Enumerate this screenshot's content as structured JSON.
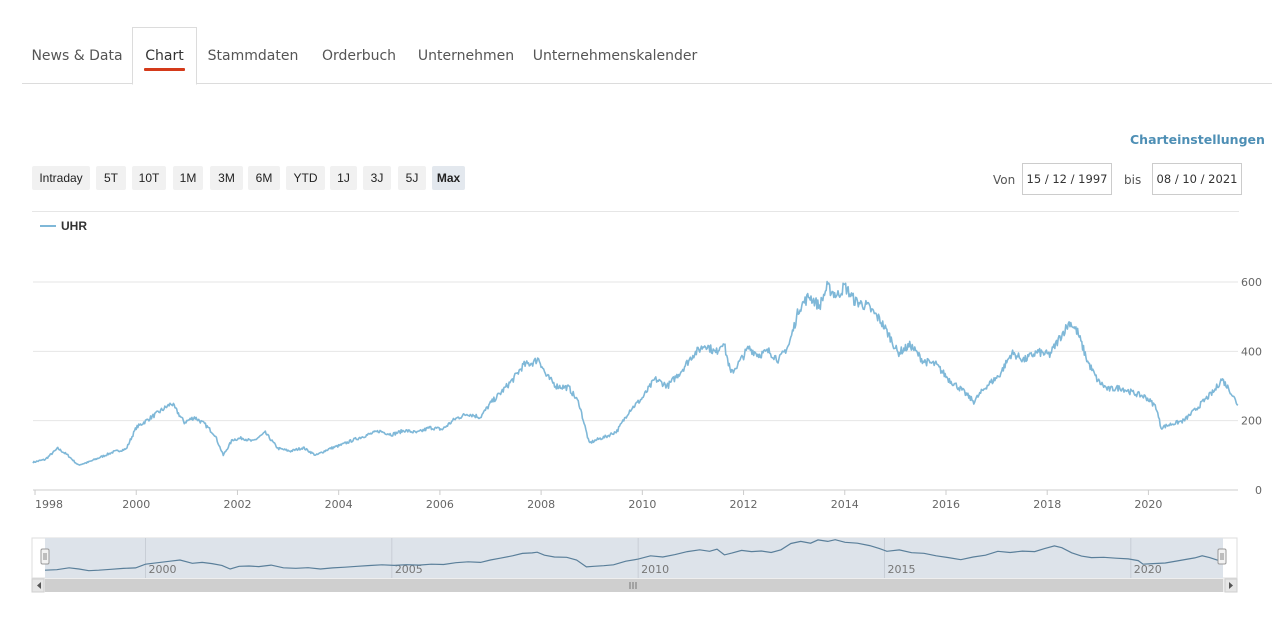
{
  "tabs": [
    {
      "label": "News & Data",
      "active": false
    },
    {
      "label": "Chart",
      "active": true
    },
    {
      "label": "Stammdaten",
      "active": false
    },
    {
      "label": "Orderbuch",
      "active": false
    },
    {
      "label": "Unternehmen",
      "active": false
    },
    {
      "label": "Unternehmenskalender",
      "active": false
    }
  ],
  "settings_label": "Charteinstellungen",
  "range_buttons": [
    {
      "label": "Intraday",
      "selected": false
    },
    {
      "label": "5T",
      "selected": false
    },
    {
      "label": "10T",
      "selected": false
    },
    {
      "label": "1M",
      "selected": false
    },
    {
      "label": "3M",
      "selected": false
    },
    {
      "label": "6M",
      "selected": false
    },
    {
      "label": "YTD",
      "selected": false
    },
    {
      "label": "1J",
      "selected": false
    },
    {
      "label": "3J",
      "selected": false
    },
    {
      "label": "5J",
      "selected": false
    },
    {
      "label": "Max",
      "selected": true
    }
  ],
  "date_range": {
    "from_label": "Von",
    "from_value": "15 / 12 / 1997",
    "to_label": "bis",
    "to_value": "08 / 10 / 2021"
  },
  "colors": {
    "accent": "#d43a1a",
    "series": "#7fb8d8",
    "link": "#4e8fb5",
    "navigator_fill": "#dde3ea"
  },
  "chart_data": {
    "type": "line",
    "series": [
      {
        "name": "UHR",
        "points": [
          [
            1997.96,
            80
          ],
          [
            1998.2,
            88
          ],
          [
            1998.45,
            120
          ],
          [
            1998.65,
            100
          ],
          [
            1998.85,
            72
          ],
          [
            1999.05,
            80
          ],
          [
            1999.3,
            95
          ],
          [
            1999.55,
            110
          ],
          [
            1999.8,
            118
          ],
          [
            2000.0,
            180
          ],
          [
            2000.25,
            205
          ],
          [
            2000.5,
            230
          ],
          [
            2000.7,
            250
          ],
          [
            2000.95,
            195
          ],
          [
            2001.15,
            210
          ],
          [
            2001.35,
            190
          ],
          [
            2001.55,
            160
          ],
          [
            2001.72,
            100
          ],
          [
            2001.9,
            145
          ],
          [
            2002.1,
            150
          ],
          [
            2002.3,
            140
          ],
          [
            2002.55,
            165
          ],
          [
            2002.8,
            120
          ],
          [
            2003.05,
            112
          ],
          [
            2003.3,
            122
          ],
          [
            2003.55,
            100
          ],
          [
            2003.8,
            118
          ],
          [
            2004.05,
            130
          ],
          [
            2004.3,
            145
          ],
          [
            2004.55,
            158
          ],
          [
            2004.8,
            170
          ],
          [
            2005.05,
            160
          ],
          [
            2005.3,
            172
          ],
          [
            2005.55,
            165
          ],
          [
            2005.8,
            180
          ],
          [
            2006.05,
            175
          ],
          [
            2006.3,
            205
          ],
          [
            2006.55,
            220
          ],
          [
            2006.8,
            210
          ],
          [
            2007.0,
            250
          ],
          [
            2007.2,
            280
          ],
          [
            2007.45,
            320
          ],
          [
            2007.65,
            360
          ],
          [
            2007.85,
            368
          ],
          [
            2007.95,
            380
          ],
          [
            2008.1,
            330
          ],
          [
            2008.3,
            300
          ],
          [
            2008.55,
            295
          ],
          [
            2008.75,
            250
          ],
          [
            2008.95,
            135
          ],
          [
            2009.1,
            145
          ],
          [
            2009.3,
            155
          ],
          [
            2009.5,
            170
          ],
          [
            2009.75,
            230
          ],
          [
            2010.0,
            265
          ],
          [
            2010.25,
            320
          ],
          [
            2010.5,
            300
          ],
          [
            2010.75,
            340
          ],
          [
            2011.0,
            390
          ],
          [
            2011.25,
            420
          ],
          [
            2011.45,
            395
          ],
          [
            2011.6,
            430
          ],
          [
            2011.75,
            335
          ],
          [
            2011.9,
            365
          ],
          [
            2012.1,
            410
          ],
          [
            2012.3,
            390
          ],
          [
            2012.5,
            400
          ],
          [
            2012.7,
            375
          ],
          [
            2012.9,
            420
          ],
          [
            2013.1,
            525
          ],
          [
            2013.3,
            560
          ],
          [
            2013.5,
            530
          ],
          [
            2013.65,
            585
          ],
          [
            2013.85,
            560
          ],
          [
            2014.0,
            588
          ],
          [
            2014.2,
            545
          ],
          [
            2014.45,
            530
          ],
          [
            2014.7,
            490
          ],
          [
            2014.9,
            440
          ],
          [
            2015.05,
            395
          ],
          [
            2015.3,
            418
          ],
          [
            2015.55,
            372
          ],
          [
            2015.8,
            362
          ],
          [
            2016.05,
            320
          ],
          [
            2016.3,
            290
          ],
          [
            2016.55,
            255
          ],
          [
            2016.8,
            300
          ],
          [
            2017.05,
            330
          ],
          [
            2017.3,
            395
          ],
          [
            2017.55,
            375
          ],
          [
            2017.8,
            398
          ],
          [
            2018.05,
            390
          ],
          [
            2018.25,
            440
          ],
          [
            2018.45,
            485
          ],
          [
            2018.6,
            455
          ],
          [
            2018.8,
            370
          ],
          [
            2019.0,
            315
          ],
          [
            2019.2,
            290
          ],
          [
            2019.45,
            295
          ],
          [
            2019.7,
            280
          ],
          [
            2019.95,
            268
          ],
          [
            2020.15,
            240
          ],
          [
            2020.25,
            180
          ],
          [
            2020.45,
            190
          ],
          [
            2020.7,
            200
          ],
          [
            2020.95,
            235
          ],
          [
            2021.15,
            265
          ],
          [
            2021.3,
            285
          ],
          [
            2021.45,
            320
          ],
          [
            2021.6,
            290
          ],
          [
            2021.77,
            245
          ]
        ]
      }
    ],
    "x_ticks": [
      "1998",
      "2000",
      "2002",
      "2004",
      "2006",
      "2008",
      "2010",
      "2012",
      "2014",
      "2016",
      "2018",
      "2020"
    ],
    "y_ticks": [
      "0",
      "200",
      "400",
      "600"
    ],
    "xlim": [
      1997.96,
      2021.77
    ],
    "ylim": [
      0,
      600
    ],
    "y_axis_side": "right",
    "grid": "horizontal",
    "legend_position": "top-left",
    "navigator": {
      "ticks": [
        "2000",
        "2005",
        "2010",
        "2015",
        "2020"
      ]
    }
  }
}
